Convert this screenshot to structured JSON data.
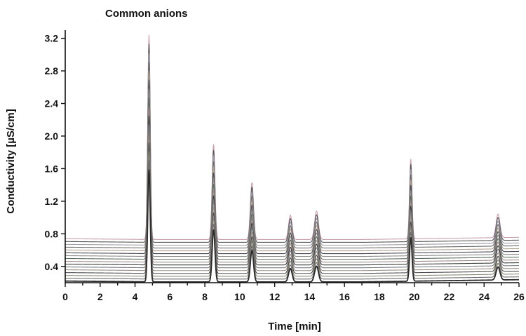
{
  "chart_data": {
    "type": "line",
    "title": "Common anions",
    "xlabel": "Time [min]",
    "ylabel": "Conductivity [µS/cm]",
    "xlim": [
      0,
      26
    ],
    "ylim": [
      0.2,
      3.3
    ],
    "xticks": [
      "0",
      "2",
      "4",
      "6",
      "8",
      "10",
      "12",
      "14",
      "16",
      "18",
      "20",
      "22",
      "24",
      "26"
    ],
    "yticks": [
      "0.4",
      "0.8",
      "1.2",
      "1.6",
      "2.0",
      "2.4",
      "2.8",
      "3.2"
    ],
    "grid": false,
    "legend": "none",
    "overlay": {
      "description": "stacked overlaid chromatograms offset vertically",
      "trace_count": 16,
      "baseline_bottom": 0.21,
      "baseline_top": 0.73
    },
    "peaks": [
      {
        "time": 4.8,
        "height_top": 3.24
      },
      {
        "time": 8.5,
        "height_top": 1.9
      },
      {
        "time": 10.7,
        "height_top": 1.43
      },
      {
        "time": 12.9,
        "height_top": 1.03
      },
      {
        "time": 14.4,
        "height_top": 1.08
      },
      {
        "time": 19.8,
        "height_top": 1.71
      },
      {
        "time": 24.8,
        "height_top": 1.02
      }
    ],
    "trace_colors": [
      "#2b2b2b",
      "#6b6b6b",
      "#8a8a7a",
      "#4c4c4c",
      "#9b8f86",
      "#7a7f86",
      "#3d3d3d",
      "#a08a8a",
      "#5e6b5e",
      "#8c8c8c",
      "#4a4a55",
      "#b0a090",
      "#6a6a6a",
      "#9a9aa8",
      "#555555",
      "#c7a0b0"
    ]
  }
}
